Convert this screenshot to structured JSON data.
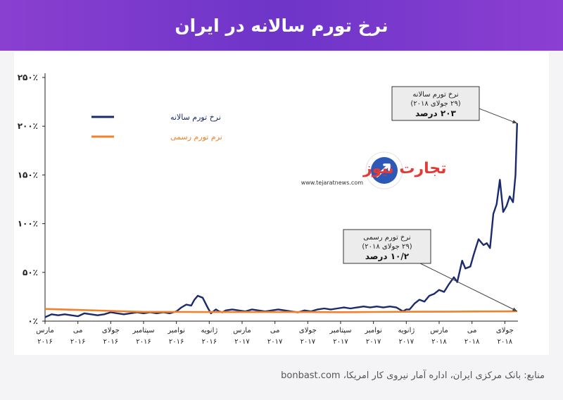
{
  "header": {
    "title": "نرخ تورم سالانه در ایران"
  },
  "source": {
    "text": "منابع: بانک مرکزی ایران، اداره آمار نیروی کار امریکا، bonbast.com"
  },
  "logo": {
    "brand": "تجارت نیوز",
    "url": "www.tejaratnews.com"
  },
  "colors": {
    "free_market": "#1a2a6c",
    "official": "#f0822e",
    "header": "#7b3ad0"
  },
  "chart_data": {
    "type": "line",
    "title": "نرخ تورم سالانه در ایران",
    "ylim": [
      0,
      250
    ],
    "y_ticks": [
      "۰٪",
      "۵۰٪",
      "۱۰۰٪",
      "۱۵۰٪",
      "۲۰۰٪",
      "۲۵۰٪"
    ],
    "y_tick_values": [
      0,
      50,
      100,
      150,
      200,
      250
    ],
    "x_ticks": [
      {
        "month": "مارس",
        "year": "۲۰۱۶",
        "t": 0
      },
      {
        "month": "می",
        "year": "۲۰۱۶",
        "t": 2
      },
      {
        "month": "جولای",
        "year": "۲۰۱۶",
        "t": 4
      },
      {
        "month": "سپتامبر",
        "year": "۲۰۱۶",
        "t": 6
      },
      {
        "month": "نوامبر",
        "year": "۲۰۱۶",
        "t": 8
      },
      {
        "month": "ژانویه",
        "year": "۲۰۱۶",
        "t": 10
      },
      {
        "month": "مارس",
        "year": "۲۰۱۷",
        "t": 12
      },
      {
        "month": "می",
        "year": "۲۰۱۷",
        "t": 14
      },
      {
        "month": "جولای",
        "year": "۲۰۱۷",
        "t": 16
      },
      {
        "month": "سپتامبر",
        "year": "۲۰۱۷",
        "t": 18
      },
      {
        "month": "نوامبر",
        "year": "۲۰۱۷",
        "t": 20
      },
      {
        "month": "ژانویه",
        "year": "۲۰۱۷",
        "t": 22
      },
      {
        "month": "مارس",
        "year": "۲۰۱۸",
        "t": 24
      },
      {
        "month": "می",
        "year": "۲۰۱۸",
        "t": 26
      },
      {
        "month": "جولای",
        "year": "۲۰۱۸",
        "t": 28
      }
    ],
    "xlim": [
      0,
      28.8
    ],
    "legend": {
      "placement": "top-left"
    },
    "series": [
      {
        "name": "نرخ تورم سالانه",
        "color": "#1a2a6c",
        "x": [
          0,
          0.4,
          0.8,
          1.2,
          1.6,
          2,
          2.4,
          2.8,
          3.2,
          3.6,
          4,
          4.4,
          4.8,
          5.2,
          5.6,
          6,
          6.4,
          6.8,
          7.2,
          7.6,
          8,
          8.3,
          8.6,
          8.9,
          9.1,
          9.3,
          9.6,
          9.9,
          10.1,
          10.4,
          10.6,
          10.8,
          11,
          11.4,
          11.8,
          12.2,
          12.6,
          13,
          13.4,
          13.8,
          14.2,
          14.6,
          15,
          15.4,
          15.8,
          16.2,
          16.6,
          17,
          17.4,
          17.8,
          18.2,
          18.6,
          19,
          19.4,
          19.8,
          20.2,
          20.6,
          21,
          21.4,
          21.8,
          22,
          22.2,
          22.5,
          22.8,
          23.1,
          23.4,
          23.7,
          24,
          24.3,
          24.6,
          24.9,
          25.1,
          25.4,
          25.6,
          25.9,
          26.1,
          26.4,
          26.7,
          26.9,
          27.1,
          27.3,
          27.5,
          27.7,
          27.9,
          28.1,
          28.3,
          28.5,
          28.65,
          28.75
        ],
        "values": [
          4,
          7,
          6,
          7,
          6,
          5,
          8,
          7,
          6,
          7,
          9,
          8,
          7,
          8,
          9,
          8,
          9,
          8,
          9,
          8,
          10,
          14,
          17,
          16,
          22,
          26,
          24,
          14,
          8,
          12,
          10,
          9,
          11,
          12,
          11,
          10,
          12,
          11,
          10,
          11,
          12,
          11,
          10,
          9,
          11,
          10,
          12,
          13,
          12,
          13,
          14,
          13,
          14,
          15,
          14,
          15,
          14,
          15,
          14,
          10,
          12,
          12,
          18,
          22,
          20,
          26,
          28,
          32,
          30,
          38,
          45,
          40,
          62,
          54,
          56,
          68,
          84,
          78,
          80,
          75,
          110,
          120,
          145,
          112,
          118,
          128,
          122,
          150,
          203
        ]
      },
      {
        "name": "نرم تورم رسمی",
        "color": "#f0822e",
        "x": [
          0,
          2,
          4,
          6,
          8,
          10,
          12,
          14,
          16,
          18,
          20,
          22,
          24,
          26,
          28,
          28.75
        ],
        "values": [
          12.5,
          11.5,
          10.5,
          9.5,
          9.5,
          9.3,
          9.3,
          9.3,
          9.3,
          9.2,
          9.4,
          9.6,
          9.7,
          9.9,
          10.0,
          10.2
        ]
      }
    ],
    "annotations": [
      {
        "title": "نرخ تورم سالانه",
        "date": "(۲۹ جولای ۲۰۱۸)",
        "value": "۲۰۳ درصد",
        "series": 0
      },
      {
        "title": "نرخ تورم رسمی",
        "date": "(۲۹ جولای ۲۰۱۸)",
        "value": "۱۰/۲ درصد",
        "series": 1
      }
    ]
  }
}
